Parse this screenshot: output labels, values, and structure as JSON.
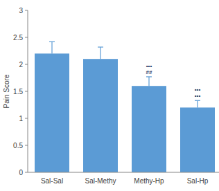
{
  "chart_data": {
    "type": "bar",
    "y_label": "Pain Score",
    "categories": [
      "Sal-Sal",
      "Sal-Methy",
      "Methy-Hp",
      "Sal-Hp"
    ],
    "values": [
      2.2,
      2.1,
      1.6,
      1.2
    ],
    "errors": [
      0.22,
      0.22,
      0.17,
      0.13
    ],
    "annotations": [
      null,
      null,
      [
        "•••",
        "##"
      ],
      [
        "•••",
        "•••"
      ]
    ],
    "color": "#5b9bd5",
    "ylim": [
      0,
      3
    ],
    "yticks": [
      0,
      0.5,
      1,
      1.5,
      2,
      2.5,
      3
    ],
    "grid": false
  }
}
